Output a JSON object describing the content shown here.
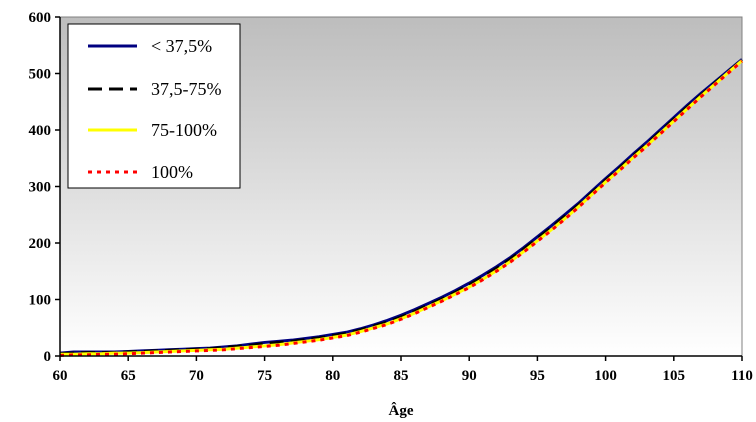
{
  "chart_data": {
    "type": "line",
    "title": "",
    "xlabel": "Âge",
    "ylabel": "",
    "xlim": [
      60,
      110
    ],
    "ylim": [
      0,
      600
    ],
    "x_ticks": [
      "60",
      "65",
      "70",
      "75",
      "80",
      "85",
      "90",
      "95",
      "100",
      "105",
      "110"
    ],
    "y_ticks": [
      "0",
      "100",
      "200",
      "300",
      "400",
      "500",
      "600"
    ],
    "grid": false,
    "legend_position": "top-left",
    "background": "vertical gradient, light gray to white",
    "series": [
      {
        "name": "< 37,5%",
        "color": "#000080",
        "style": "solid",
        "x": [
          60,
          61,
          62,
          63,
          64,
          65,
          66,
          67,
          68,
          69,
          70,
          71,
          72,
          73,
          74,
          75,
          76,
          77,
          78,
          79,
          80,
          81,
          82,
          83,
          84,
          85,
          86,
          87,
          88,
          89,
          90,
          91,
          92,
          93,
          94,
          95,
          96,
          97,
          98,
          99,
          100,
          101,
          102,
          103,
          104,
          105,
          106,
          107,
          108,
          109,
          110
        ],
        "values": [
          5,
          7,
          7,
          7,
          7,
          8,
          9,
          10,
          11,
          12,
          13,
          14,
          16,
          18,
          21,
          24,
          26,
          28,
          31,
          34,
          38,
          42,
          48,
          55,
          63,
          72,
          82,
          93,
          104,
          116,
          129,
          143,
          158,
          174,
          192,
          211,
          230,
          250,
          270,
          292,
          314,
          335,
          357,
          378,
          400,
          422,
          444,
          465,
          485,
          505,
          525
        ]
      },
      {
        "name": "37,5-75%",
        "color": "#000000",
        "style": "dashed",
        "x": [
          60,
          61,
          62,
          63,
          64,
          65,
          66,
          67,
          68,
          69,
          70,
          71,
          72,
          73,
          74,
          75,
          76,
          77,
          78,
          79,
          80,
          81,
          82,
          83,
          84,
          85,
          86,
          87,
          88,
          89,
          90,
          91,
          92,
          93,
          94,
          95,
          96,
          97,
          98,
          99,
          100,
          101,
          102,
          103,
          104,
          105,
          106,
          107,
          108,
          109,
          110
        ],
        "values": [
          4,
          5,
          6,
          6,
          6,
          7,
          8,
          9,
          10,
          11,
          12,
          13,
          15,
          17,
          19,
          22,
          24,
          26,
          29,
          32,
          36,
          40,
          46,
          53,
          60,
          69,
          79,
          90,
          101,
          113,
          126,
          140,
          155,
          171,
          189,
          208,
          227,
          247,
          267,
          289,
          311,
          332,
          354,
          375,
          397,
          419,
          441,
          462,
          483,
          503,
          524
        ]
      },
      {
        "name": "75-100%",
        "color": "#ffff00",
        "style": "solid",
        "x": [
          60,
          61,
          62,
          63,
          64,
          65,
          66,
          67,
          68,
          69,
          70,
          71,
          72,
          73,
          74,
          75,
          76,
          77,
          78,
          79,
          80,
          81,
          82,
          83,
          84,
          85,
          86,
          87,
          88,
          89,
          90,
          91,
          92,
          93,
          94,
          95,
          96,
          97,
          98,
          99,
          100,
          101,
          102,
          103,
          104,
          105,
          106,
          107,
          108,
          109,
          110
        ],
        "values": [
          3,
          3,
          4,
          4,
          5,
          5,
          6,
          7,
          8,
          9,
          10,
          11,
          12,
          14,
          16,
          18,
          20,
          23,
          26,
          29,
          33,
          37,
          43,
          50,
          57,
          66,
          76,
          87,
          98,
          110,
          122,
          136,
          151,
          167,
          185,
          204,
          223,
          243,
          264,
          286,
          308,
          329,
          351,
          372,
          394,
          416,
          438,
          460,
          481,
          502,
          523
        ]
      },
      {
        "name": "100%",
        "color": "#ff0000",
        "style": "dotted",
        "x": [
          60,
          61,
          62,
          63,
          64,
          65,
          66,
          67,
          68,
          69,
          70,
          71,
          72,
          73,
          74,
          75,
          76,
          77,
          78,
          79,
          80,
          81,
          82,
          83,
          84,
          85,
          86,
          87,
          88,
          89,
          90,
          91,
          92,
          93,
          94,
          95,
          96,
          97,
          98,
          99,
          100,
          101,
          102,
          103,
          104,
          105,
          106,
          107,
          108,
          109,
          110
        ],
        "values": [
          1,
          2,
          2,
          3,
          3,
          4,
          5,
          6,
          7,
          8,
          9,
          10,
          11,
          13,
          15,
          17,
          19,
          22,
          25,
          28,
          32,
          36,
          42,
          49,
          56,
          65,
          75,
          86,
          97,
          109,
          121,
          135,
          150,
          166,
          184,
          203,
          222,
          242,
          263,
          285,
          307,
          328,
          350,
          371,
          393,
          415,
          437,
          459,
          480,
          501,
          522
        ]
      }
    ]
  }
}
